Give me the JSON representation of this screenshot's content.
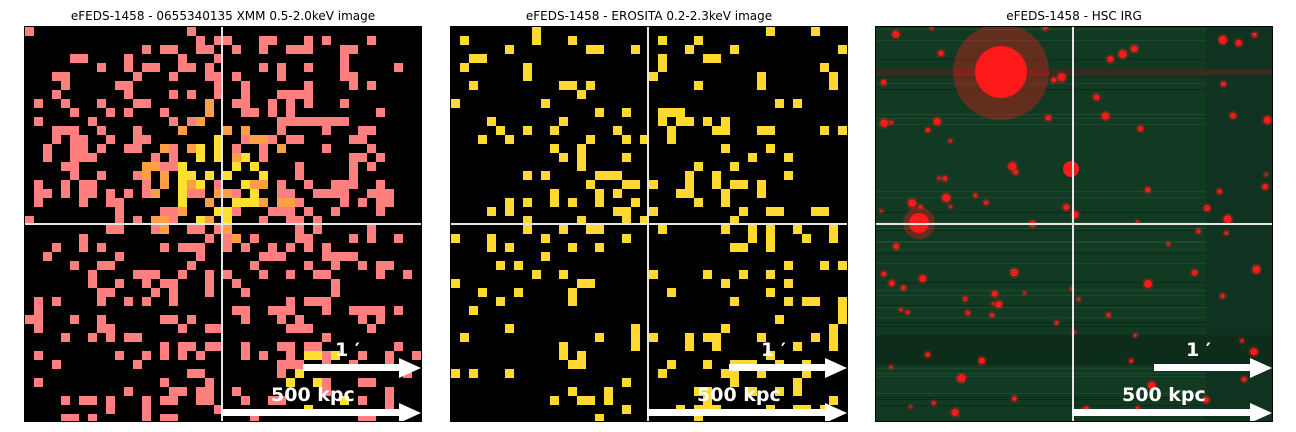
{
  "panels": [
    {
      "title": "eFEDS-1458 - 0655340135 XMM 0.5-2.0keV image",
      "scale_arcmin": "1 ′",
      "scale_kpc": "500 kpc",
      "style": "xmm"
    },
    {
      "title": "eFEDS-1458 -  EROSITA 0.2-2.3keV image",
      "scale_arcmin": "1 ′",
      "scale_kpc": "500 kpc",
      "style": "erosita"
    },
    {
      "title": "eFEDS-1458 - HSC IRG",
      "scale_arcmin": "1 ′",
      "scale_kpc": "500 kpc",
      "style": "hsc"
    }
  ],
  "colors": {
    "xmm_low": "#ff7f7f",
    "xmm_mid": "#ff9f45",
    "xmm_high": "#ffe030",
    "erosita": "#ffd830",
    "hsc_bg": "#123a22",
    "hsc_source": "#ff1a1a",
    "crosshair": "#e6e6e6"
  }
}
